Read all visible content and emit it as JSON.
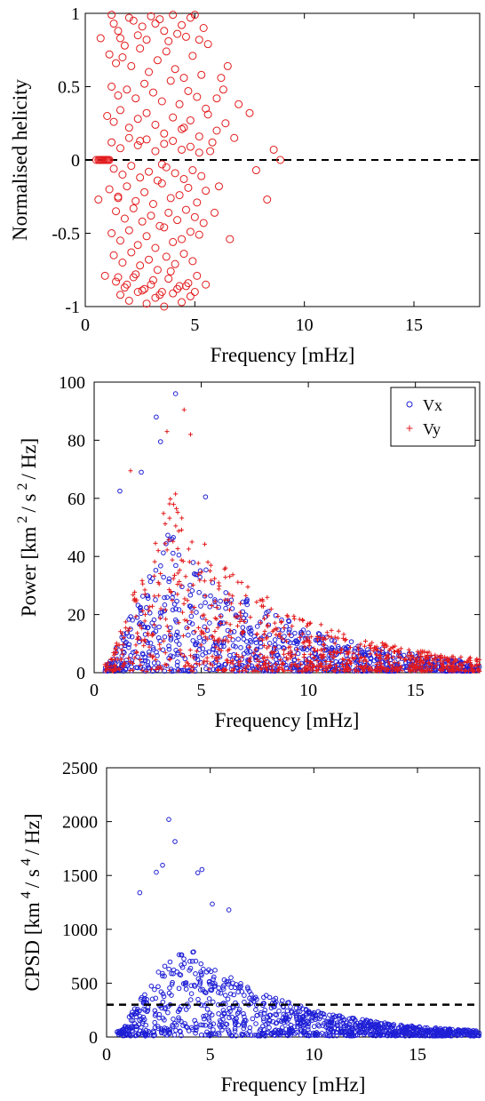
{
  "chart_data": [
    {
      "id": "helicity",
      "type": "scatter",
      "title": "",
      "xlabel": "Frequency [mHz]",
      "ylabel": "Normalised helicity",
      "xlim": [
        0,
        18
      ],
      "ylim": [
        -1,
        1
      ],
      "xticks": [
        "0",
        "5",
        "10",
        "15"
      ],
      "yticks": [
        "-1",
        "-0.5",
        "0",
        "0.5",
        "1"
      ],
      "grid": false,
      "reference_line": {
        "y": 0,
        "style": "dashed",
        "color": "#000000"
      },
      "series": [
        {
          "marker": "circle",
          "color": "#e31a1c",
          "x": [
            0.5,
            0.6,
            0.65,
            0.7,
            0.75,
            0.8,
            0.85,
            0.9,
            0.95,
            1.0,
            1.05,
            1.1,
            1.2,
            1.3,
            1.5,
            1.6,
            1.8,
            2.0,
            2.2,
            2.4,
            2.6,
            2.8,
            3.0,
            3.2,
            3.4,
            3.6,
            3.8,
            4.0,
            4.2,
            4.4,
            4.6,
            4.8,
            5.0,
            5.2,
            5.4,
            5.6,
            1.1,
            1.4,
            1.7,
            2.1,
            2.5,
            2.9,
            3.3,
            3.7,
            4.1,
            4.5,
            4.9,
            5.3,
            1.2,
            1.5,
            1.9,
            2.3,
            2.7,
            3.1,
            3.5,
            3.9,
            4.3,
            4.7,
            5.1,
            5.5,
            1.0,
            1.3,
            1.6,
            2.0,
            2.4,
            2.8,
            3.2,
            3.6,
            4.0,
            4.4,
            4.8,
            5.2,
            5.6,
            1.2,
            1.6,
            2.0,
            2.4,
            2.8,
            3.2,
            3.6,
            4.0,
            4.4,
            4.8,
            5.2,
            1.3,
            1.7,
            2.1,
            2.5,
            2.9,
            3.3,
            3.7,
            4.1,
            4.5,
            4.9,
            5.3,
            1.1,
            1.5,
            1.9,
            2.3,
            2.7,
            3.1,
            3.5,
            3.9,
            4.3,
            4.7,
            5.1,
            5.5,
            1.4,
            1.8,
            2.2,
            2.6,
            3.0,
            3.4,
            3.8,
            4.2,
            4.6,
            5.0,
            5.4,
            1.2,
            1.6,
            2.0,
            2.4,
            2.8,
            3.2,
            3.6,
            4.0,
            4.4,
            4.8,
            5.2,
            1.3,
            1.7,
            2.1,
            2.5,
            2.9,
            3.3,
            3.7,
            4.1,
            4.5,
            4.9,
            1.5,
            1.9,
            2.3,
            2.7,
            3.1,
            3.5,
            3.9,
            4.3,
            4.7,
            5.1,
            1.6,
            2.0,
            2.4,
            2.8,
            3.2,
            3.6,
            4.0,
            4.4,
            4.8,
            1.4,
            1.8,
            2.2,
            2.6,
            3.0,
            3.4,
            3.8,
            4.2,
            4.6,
            5.0,
            0.6,
            0.7,
            0.9,
            1.5,
            2.5,
            3.5,
            4.5,
            5.5,
            6.0,
            6.2,
            6.5,
            6.8,
            7.0,
            7.5,
            7.8,
            8.3,
            8.6,
            8.9,
            5.8,
            6.1,
            6.4,
            5.9,
            6.3,
            6.6,
            5.7,
            6.0
          ],
          "y": [
            0,
            0,
            0,
            0,
            0,
            0,
            0,
            0,
            0,
            0,
            0,
            0,
            0.99,
            0.93,
            0.88,
            0.83,
            0.78,
            0.97,
            0.95,
            0.85,
            0.91,
            0.82,
            0.98,
            0.93,
            0.96,
            0.88,
            0.81,
            0.99,
            0.86,
            0.92,
            0.84,
            0.97,
            0.99,
            0.82,
            0.9,
            0.79,
            0.72,
            0.66,
            0.7,
            0.64,
            0.76,
            0.6,
            0.68,
            0.74,
            0.62,
            0.56,
            0.71,
            0.58,
            0.5,
            0.44,
            0.48,
            0.42,
            0.52,
            0.46,
            0.4,
            0.54,
            0.38,
            0.47,
            0.43,
            0.35,
            0.3,
            0.26,
            0.34,
            0.22,
            0.28,
            0.32,
            0.24,
            0.18,
            0.29,
            0.21,
            0.27,
            0.16,
            0.31,
            0.12,
            0.08,
            0.15,
            0.1,
            0.14,
            0.06,
            0.11,
            0.13,
            0.07,
            0.09,
            0.05,
            -0.06,
            -0.1,
            -0.04,
            -0.12,
            -0.08,
            -0.14,
            -0.05,
            -0.09,
            -0.13,
            -0.07,
            -0.11,
            -0.2,
            -0.25,
            -0.18,
            -0.28,
            -0.22,
            -0.3,
            -0.16,
            -0.26,
            -0.24,
            -0.19,
            -0.29,
            -0.21,
            -0.35,
            -0.4,
            -0.33,
            -0.42,
            -0.38,
            -0.45,
            -0.36,
            -0.41,
            -0.34,
            -0.39,
            -0.43,
            -0.5,
            -0.55,
            -0.48,
            -0.58,
            -0.52,
            -0.6,
            -0.46,
            -0.56,
            -0.54,
            -0.49,
            -0.51,
            -0.65,
            -0.7,
            -0.63,
            -0.72,
            -0.68,
            -0.75,
            -0.66,
            -0.71,
            -0.64,
            -0.69,
            -0.8,
            -0.85,
            -0.78,
            -0.88,
            -0.82,
            -0.9,
            -0.76,
            -0.86,
            -0.84,
            -0.79,
            -0.92,
            -0.96,
            -0.9,
            -0.98,
            -0.94,
            -1.0,
            -0.91,
            -0.97,
            -0.93,
            -0.83,
            -0.87,
            -0.8,
            -0.89,
            -0.85,
            -0.92,
            -0.81,
            -0.88,
            -0.86,
            -0.9,
            -0.27,
            0.83,
            -0.79,
            -0.26,
            0.13,
            -0.03,
            0.22,
            -0.85,
            0.42,
            0.56,
            0.64,
            0.15,
            0.38,
            0.32,
            -0.07,
            -0.27,
            0.07,
            0.0,
            0.12,
            -0.18,
            0.25,
            -0.36,
            0.48,
            -0.54,
            0.06,
            0.2
          ]
        }
      ]
    },
    {
      "id": "power",
      "type": "scatter",
      "title": "",
      "xlabel": "Frequency [mHz]",
      "ylabel_parts": [
        "Power [km",
        "2",
        "/ s",
        "2",
        "/ Hz]"
      ],
      "xlim": [
        0,
        18
      ],
      "ylim": [
        0,
        100
      ],
      "xticks": [
        "0",
        "5",
        "10",
        "15"
      ],
      "yticks": [
        "0",
        "20",
        "40",
        "60",
        "80",
        "100"
      ],
      "grid": false,
      "legend_position": "top-right",
      "series": [
        {
          "name": "Vx",
          "marker": "circle",
          "color": "#1f1fd6"
        },
        {
          "name": "Vy",
          "marker": "plus",
          "color": "#e31a1c"
        }
      ],
      "generation": {
        "points_per_series": 900,
        "x_range": [
          0.5,
          18
        ],
        "x_peak_mhz": 3.5,
        "envelope_peak_power": 60,
        "decay_scale_mhz": 5.5,
        "highlights": [
          [
            3.8,
            96
          ],
          [
            4.2,
            90.5
          ],
          [
            3.1,
            79.5
          ],
          [
            3.4,
            83
          ],
          [
            2.9,
            88
          ],
          [
            4.5,
            82
          ],
          [
            2.2,
            69
          ],
          [
            1.7,
            69.5
          ],
          [
            1.2,
            62.5
          ],
          [
            3.8,
            61.5
          ],
          [
            5.2,
            60.5
          ]
        ]
      }
    },
    {
      "id": "cpsd",
      "type": "scatter",
      "title": "",
      "xlabel": "Frequency [mHz]",
      "ylabel_parts": [
        "CPSD  [km",
        "4",
        "/ s",
        "4",
        "/ Hz]"
      ],
      "xlim": [
        0,
        18
      ],
      "ylim": [
        0,
        2500
      ],
      "xticks": [
        "0",
        "5",
        "10",
        "15"
      ],
      "yticks": [
        "0",
        "500",
        "1000",
        "1500",
        "2000",
        "2500"
      ],
      "grid": false,
      "reference_line": {
        "y": 300,
        "style": "dashed",
        "color": "#000000"
      },
      "series": [
        {
          "marker": "circle",
          "color": "#1f1fd6"
        }
      ],
      "generation": {
        "points": 1100,
        "x_range": [
          0.5,
          18
        ],
        "x_peak_mhz": 3.5,
        "envelope_peak_cpsd": 900,
        "decay_scale_mhz": 5,
        "highlights": [
          [
            3.0,
            2020
          ],
          [
            3.3,
            1815
          ],
          [
            2.7,
            1595
          ],
          [
            4.6,
            1555
          ],
          [
            4.4,
            1525
          ],
          [
            2.4,
            1530
          ],
          [
            1.6,
            1340
          ],
          [
            5.1,
            1235
          ],
          [
            5.9,
            1180
          ]
        ]
      }
    }
  ]
}
